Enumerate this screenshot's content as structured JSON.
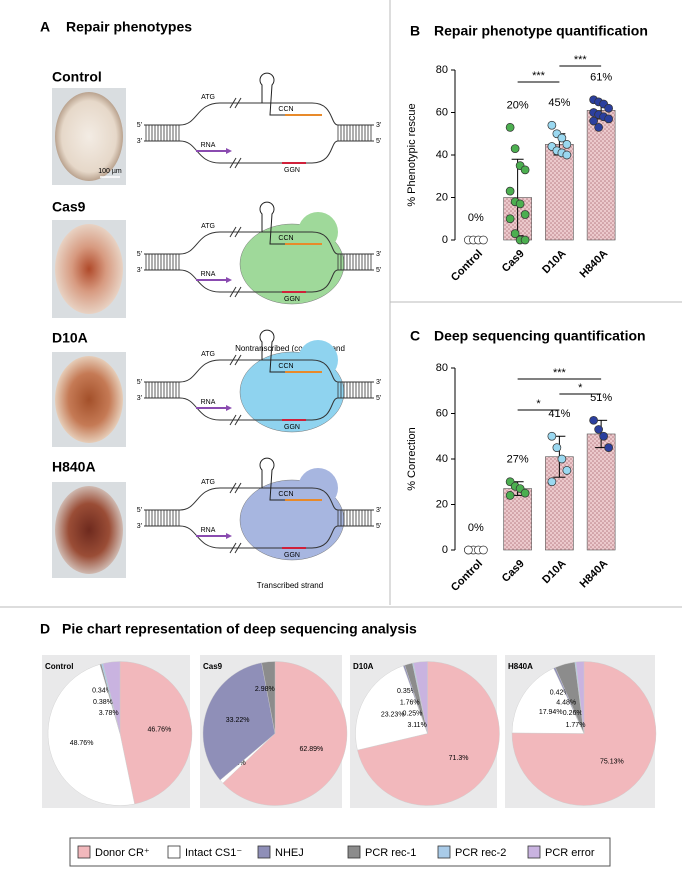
{
  "panel_a": {
    "label": "A",
    "title": "Repair phenotypes",
    "rows": [
      {
        "name": "Control",
        "color": "#000000",
        "scale_bar": "100 µm",
        "protein_color": null,
        "five_prime": "5'",
        "three_prime": "3'",
        "atg": "ATG",
        "ccn": "CCN",
        "ggn": "GGN",
        "rna": "RNA"
      },
      {
        "name": "Cas9",
        "color": "#2e9a3a",
        "protein_color": "#9fd99a",
        "five_prime": "5'",
        "three_prime": "3'",
        "atg": "ATG",
        "ccn": "CCN",
        "ggn": "GGN",
        "rna": "RNA"
      },
      {
        "name": "D10A",
        "color": "#2f9fd8",
        "protein_color": "#8fd3ef",
        "five_prime": "5'",
        "three_prime": "3'",
        "atg": "ATG",
        "ccn": "CCN",
        "ggn": "GGN",
        "rna": "RNA"
      },
      {
        "name": "H840A",
        "color": "#1f2a7a",
        "protein_color": "#a7b6e0",
        "five_prime": "5'",
        "three_prime": "3'",
        "atg": "ATG",
        "ccn": "CCN",
        "ggn": "GGN",
        "rna": "RNA"
      }
    ],
    "strand_notes": [
      "Nontranscribed (coding) strand",
      "Transcribed strand"
    ]
  },
  "chart_data": [
    {
      "type": "bar",
      "label": "B",
      "title": "Repair phenotype quantification",
      "y_label": "% Phenotypic rescue",
      "categories": [
        "Control",
        "Cas9",
        "D10A",
        "H840A"
      ],
      "category_colors": [
        "#000000",
        "#2e9a3a",
        "#2f9fd8",
        "#1f2a7a"
      ],
      "values": [
        0,
        20,
        45,
        61
      ],
      "value_labels": [
        "0%",
        "20%",
        "45%",
        "61%"
      ],
      "errors": [
        null,
        18,
        5,
        4
      ],
      "points": [
        [
          0,
          0,
          0,
          0
        ],
        [
          53,
          43,
          35,
          33,
          23,
          18,
          17,
          12,
          10,
          3,
          0,
          0
        ],
        [
          54,
          50,
          48,
          45,
          44,
          42,
          41,
          40
        ],
        [
          66,
          65,
          64,
          62,
          60,
          59,
          58,
          57,
          56,
          53
        ]
      ],
      "point_colors": [
        "#ffffff",
        "#4caf50",
        "#9ad8f0",
        "#2b3f9e"
      ],
      "color": "#e9c3c6",
      "ylim": [
        0,
        80
      ],
      "yticks": [
        0,
        20,
        40,
        60,
        80
      ],
      "annotations": [
        {
          "label": "***",
          "between": [
            "Cas9",
            "D10A"
          ]
        },
        {
          "label": "***",
          "between": [
            "D10A",
            "H840A"
          ]
        }
      ]
    },
    {
      "type": "bar",
      "label": "C",
      "title": "Deep sequencing quantification",
      "y_label": "% Correction",
      "categories": [
        "Control",
        "Cas9",
        "D10A",
        "H840A"
      ],
      "category_colors": [
        "#000000",
        "#2e9a3a",
        "#2f9fd8",
        "#1f2a7a"
      ],
      "values": [
        0,
        27,
        41,
        51
      ],
      "value_labels": [
        "0%",
        "27%",
        "41%",
        "51%"
      ],
      "errors": [
        null,
        3,
        9,
        6
      ],
      "points": [
        [
          0,
          0,
          0,
          0,
          0
        ],
        [
          30,
          28,
          27,
          25,
          24
        ],
        [
          50,
          45,
          40,
          35,
          30
        ],
        [
          57,
          53,
          50,
          45
        ]
      ],
      "point_colors": [
        "#ffffff",
        "#4caf50",
        "#9ad8f0",
        "#2b3f9e"
      ],
      "color": "#e9c3c6",
      "ylim": [
        0,
        80
      ],
      "yticks": [
        0,
        20,
        40,
        60,
        80
      ],
      "annotations": [
        {
          "label": "*",
          "between": [
            "Cas9",
            "D10A"
          ]
        },
        {
          "label": "*",
          "between": [
            "D10A",
            "H840A"
          ]
        },
        {
          "label": "***",
          "between": [
            "Cas9",
            "H840A"
          ]
        }
      ]
    },
    {
      "type": "pie",
      "title": "Control",
      "title_color": "#000000",
      "values": [
        46.76,
        48.76,
        null,
        0.34,
        0.38,
        3.78
      ],
      "value_labels": [
        "46.76%",
        "48.76%",
        null,
        "0.34%",
        "0.38%",
        "3.78%"
      ]
    },
    {
      "type": "pie",
      "title": "Cas9",
      "title_color": "#2e9a3a",
      "values": [
        62.89,
        0.91,
        33.22,
        2.98,
        null,
        null
      ],
      "value_labels": [
        "62.89%",
        "0.91%",
        "33.22%",
        "2.98%",
        null,
        null
      ]
    },
    {
      "type": "pie",
      "title": "D10A",
      "title_color": "#2f9fd8",
      "values": [
        71.3,
        23.23,
        0.35,
        1.76,
        0.25,
        3.11
      ],
      "value_labels": [
        "71.3%",
        "23.23%",
        "0.35%",
        "1.76%",
        "0.25%",
        "3.11%"
      ]
    },
    {
      "type": "pie",
      "title": "H840A",
      "title_color": "#1f2a7a",
      "values": [
        75.13,
        17.94,
        0.42,
        4.48,
        0.26,
        1.77
      ],
      "value_labels": [
        "75.13%",
        "17.94%",
        "0.42%",
        "4.48%",
        "0.26%",
        "1.77%"
      ]
    }
  ],
  "panel_d": {
    "label": "D",
    "title": "Pie chart representation of deep sequencing analysis"
  },
  "legend": {
    "labels": [
      "Donor CR⁺",
      "Intact CS1⁻",
      "NHEJ",
      "PCR rec-1",
      "PCR rec-2",
      "PCR error"
    ],
    "colors": [
      "#f2b8bc",
      "#ffffff",
      "#8f8fb8",
      "#8c8c8c",
      "#a9cbe8",
      "#c9b3e0"
    ]
  }
}
